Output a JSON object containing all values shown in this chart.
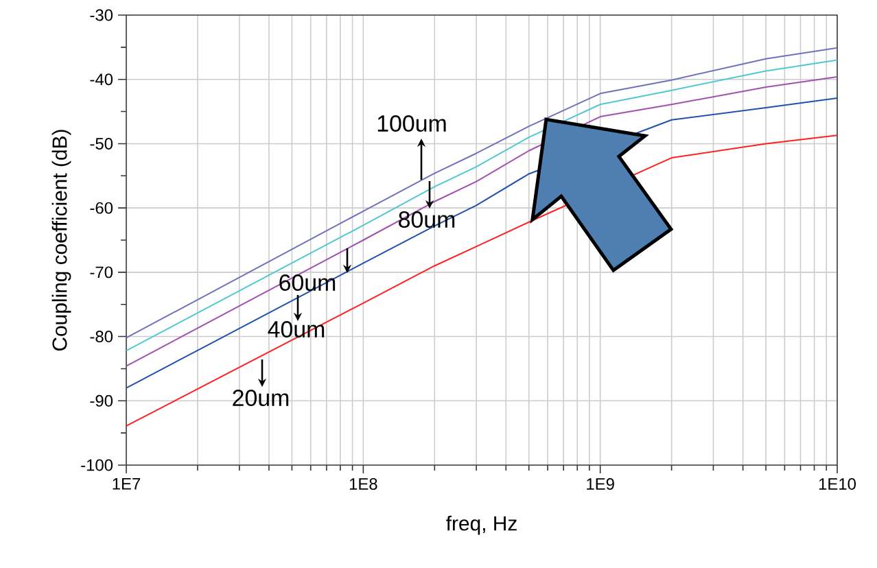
{
  "chart_data": {
    "type": "line",
    "xlabel": "freq, Hz",
    "ylabel": "Coupling coefficient (dB)",
    "log": "x",
    "grid": true,
    "marker": "none",
    "line_style": "solid",
    "x": [
      10000000.0,
      100000000.0,
      200000000.0,
      300000000.0,
      500000000.0,
      1000000000.0,
      2000000000.0,
      5000000000.0,
      10000000000.0
    ],
    "xlim": [
      10000000.0,
      10000000000.0
    ],
    "ylim": [
      -100,
      -30
    ],
    "xticks": [
      {
        "value": 10000000.0,
        "label": "1E7"
      },
      {
        "value": 100000000.0,
        "label": "1E8"
      },
      {
        "value": 1000000000.0,
        "label": "1E9"
      },
      {
        "value": 10000000000.0,
        "label": "1E10"
      }
    ],
    "yticks": [
      -100,
      {
        "value": -95,
        "label": null
      },
      -90,
      {
        "value": -85,
        "label": null
      },
      -80,
      {
        "value": -75,
        "label": null
      },
      -70,
      {
        "value": -65,
        "label": null
      },
      -60,
      {
        "value": -55,
        "label": null
      },
      -50,
      {
        "value": -45,
        "label": null
      },
      -40,
      {
        "value": -35,
        "label": null
      },
      -30
    ],
    "series": [
      {
        "name": "100um",
        "color": "#7070c0",
        "values": [
          -80.2,
          -60.5,
          -54.6,
          -51.5,
          -47.3,
          -42.2,
          -40.1,
          -36.8,
          -35.1
        ]
      },
      {
        "name": "80um",
        "color": "#50c8d0",
        "values": [
          -82.2,
          -62.7,
          -56.7,
          -53.6,
          -49,
          -43.9,
          -41.7,
          -38.7,
          -37
        ]
      },
      {
        "name": "60um",
        "color": "#a050b0",
        "values": [
          -84.6,
          -65,
          -59,
          -55.9,
          -51.1,
          -45.8,
          -43.9,
          -41.2,
          -39.6
        ]
      },
      {
        "name": "40um",
        "color": "#2050b0",
        "x": [
          10000000.0,
          100000000.0,
          200000000.0,
          300000000.0,
          500000000.0,
          2000000000.0,
          5000000000.0,
          10000000000.0
        ],
        "values": [
          -88,
          -68.6,
          -62.8,
          -59.6,
          -54.7,
          -46.3,
          -44.4,
          -42.9
        ]
      },
      {
        "name": "20um",
        "color": "#ff2020",
        "x": [
          10000000.0,
          100000000.0,
          200000000.0,
          300000000.0,
          500000000.0,
          2000000000.0,
          5000000000.0,
          10000000000.0
        ],
        "values": [
          -93.9,
          -74.8,
          -69,
          -66,
          -62.2,
          -52.2,
          -50,
          -48.7
        ]
      }
    ]
  }
}
